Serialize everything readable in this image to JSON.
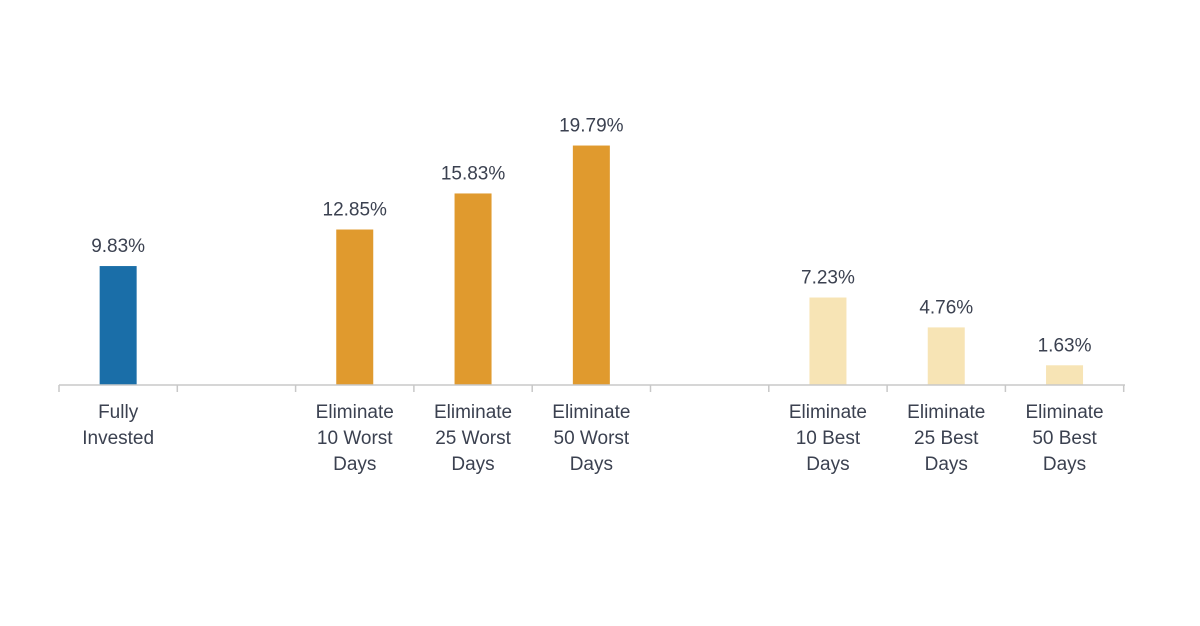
{
  "chart_data": {
    "type": "bar",
    "title": "",
    "xlabel": "",
    "ylabel": "",
    "ylim": [
      0,
      20
    ],
    "grid": false,
    "legend": "none",
    "value_suffix": "%",
    "categories": [
      [
        "Fully",
        "Invested"
      ],
      [],
      [
        "Eliminate",
        "10 Worst",
        "Days"
      ],
      [
        "Eliminate",
        "25 Worst",
        "Days"
      ],
      [
        "Eliminate",
        "50 Worst",
        "Days"
      ],
      [],
      [
        "Eliminate",
        "10 Best",
        "Days"
      ],
      [
        "Eliminate",
        "25 Best",
        "Days"
      ],
      [
        "Eliminate",
        "50 Best",
        "Days"
      ]
    ],
    "values": [
      9.83,
      null,
      12.85,
      15.83,
      19.79,
      null,
      7.23,
      4.76,
      1.63
    ],
    "value_labels": [
      "9.83%",
      "",
      "12.85%",
      "15.83%",
      "19.79%",
      "",
      "7.23%",
      "4.76%",
      "1.63%"
    ],
    "bar_colors": [
      "#1a6ea8",
      null,
      "#e09a2e",
      "#e09a2e",
      "#e09a2e",
      null,
      "#f7e4b5",
      "#f7e4b5",
      "#f7e4b5"
    ],
    "axis_color": "#c8c8c8"
  }
}
